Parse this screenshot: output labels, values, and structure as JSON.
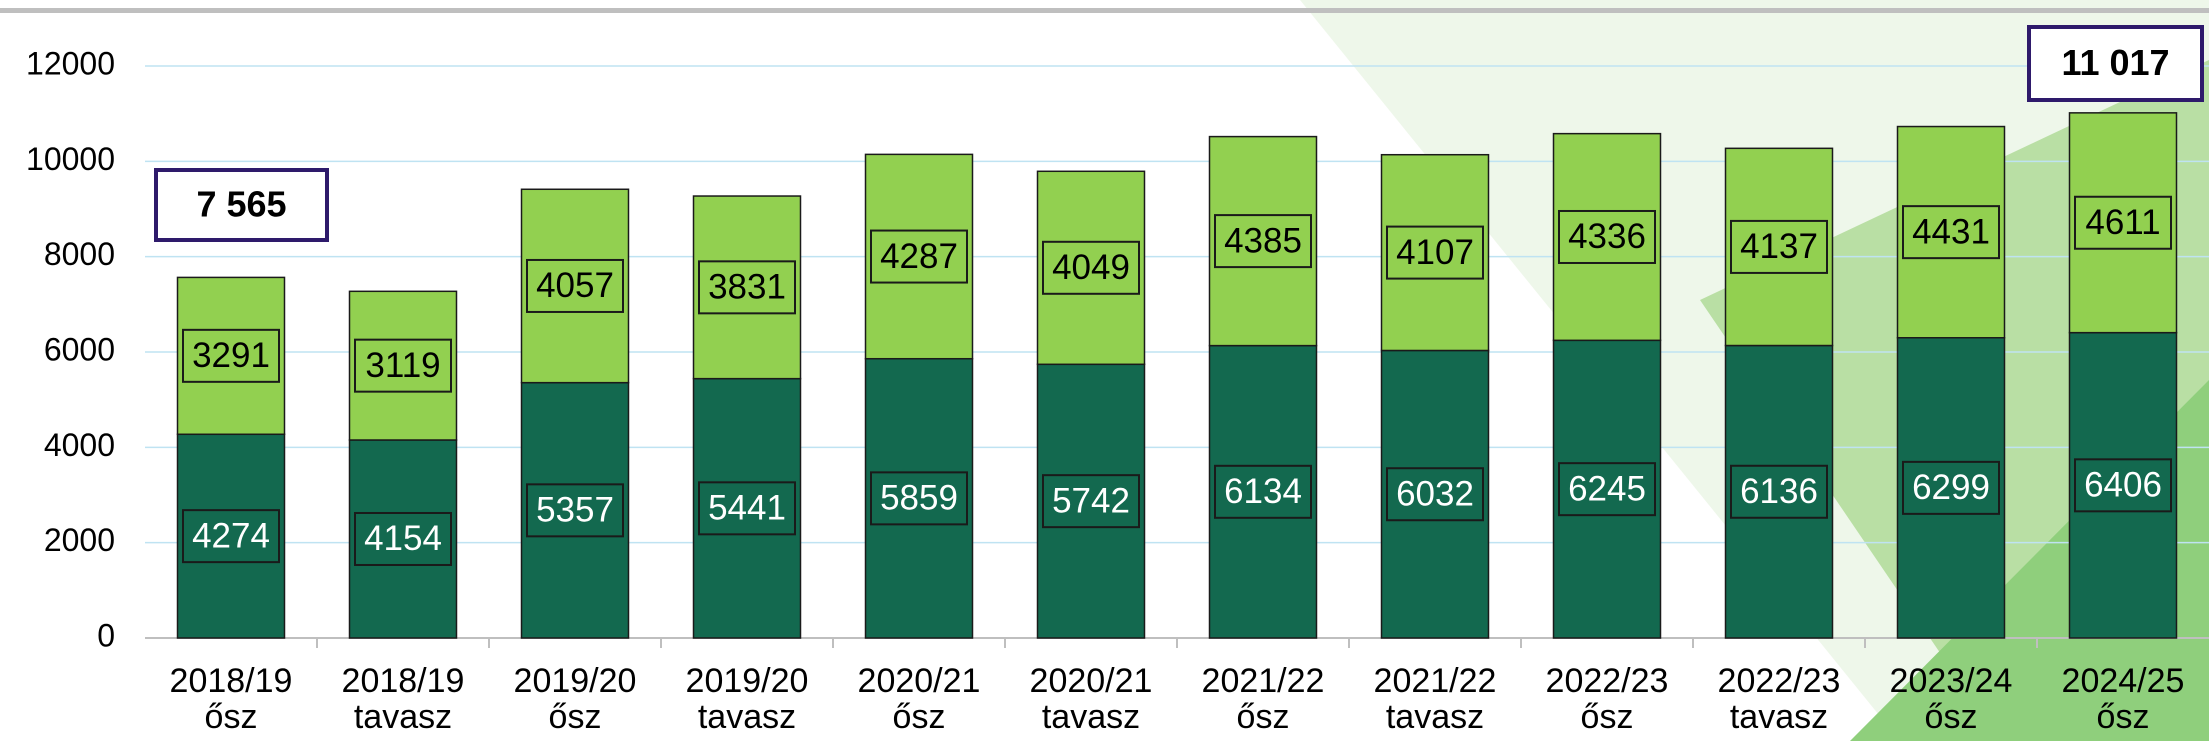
{
  "chart_data": {
    "type": "stacked-bar",
    "categories": [
      "2018/19 ősz",
      "2018/19 tavasz",
      "2019/20 ősz",
      "2019/20 tavasz",
      "2020/21 ősz",
      "2020/21 tavasz",
      "2021/22 ősz",
      "2021/22 tavasz",
      "2022/23 ősz",
      "2022/23 tavasz",
      "2023/24 ősz",
      "2024/25 ősz"
    ],
    "series": [
      {
        "color": "#13694f",
        "values": [
          4274,
          4154,
          5357,
          5441,
          5859,
          5742,
          6134,
          6032,
          6245,
          6136,
          6299,
          6406
        ]
      },
      {
        "color": "#92d050",
        "values": [
          3291,
          3119,
          4057,
          3831,
          4287,
          4049,
          4385,
          4107,
          4336,
          4137,
          4431,
          4611
        ]
      }
    ],
    "annotations": [
      "7 565",
      "11 017"
    ],
    "ylim": [
      0,
      12000
    ],
    "yticks": [
      0,
      2000,
      4000,
      6000,
      8000,
      10000,
      12000
    ],
    "grid": true
  }
}
